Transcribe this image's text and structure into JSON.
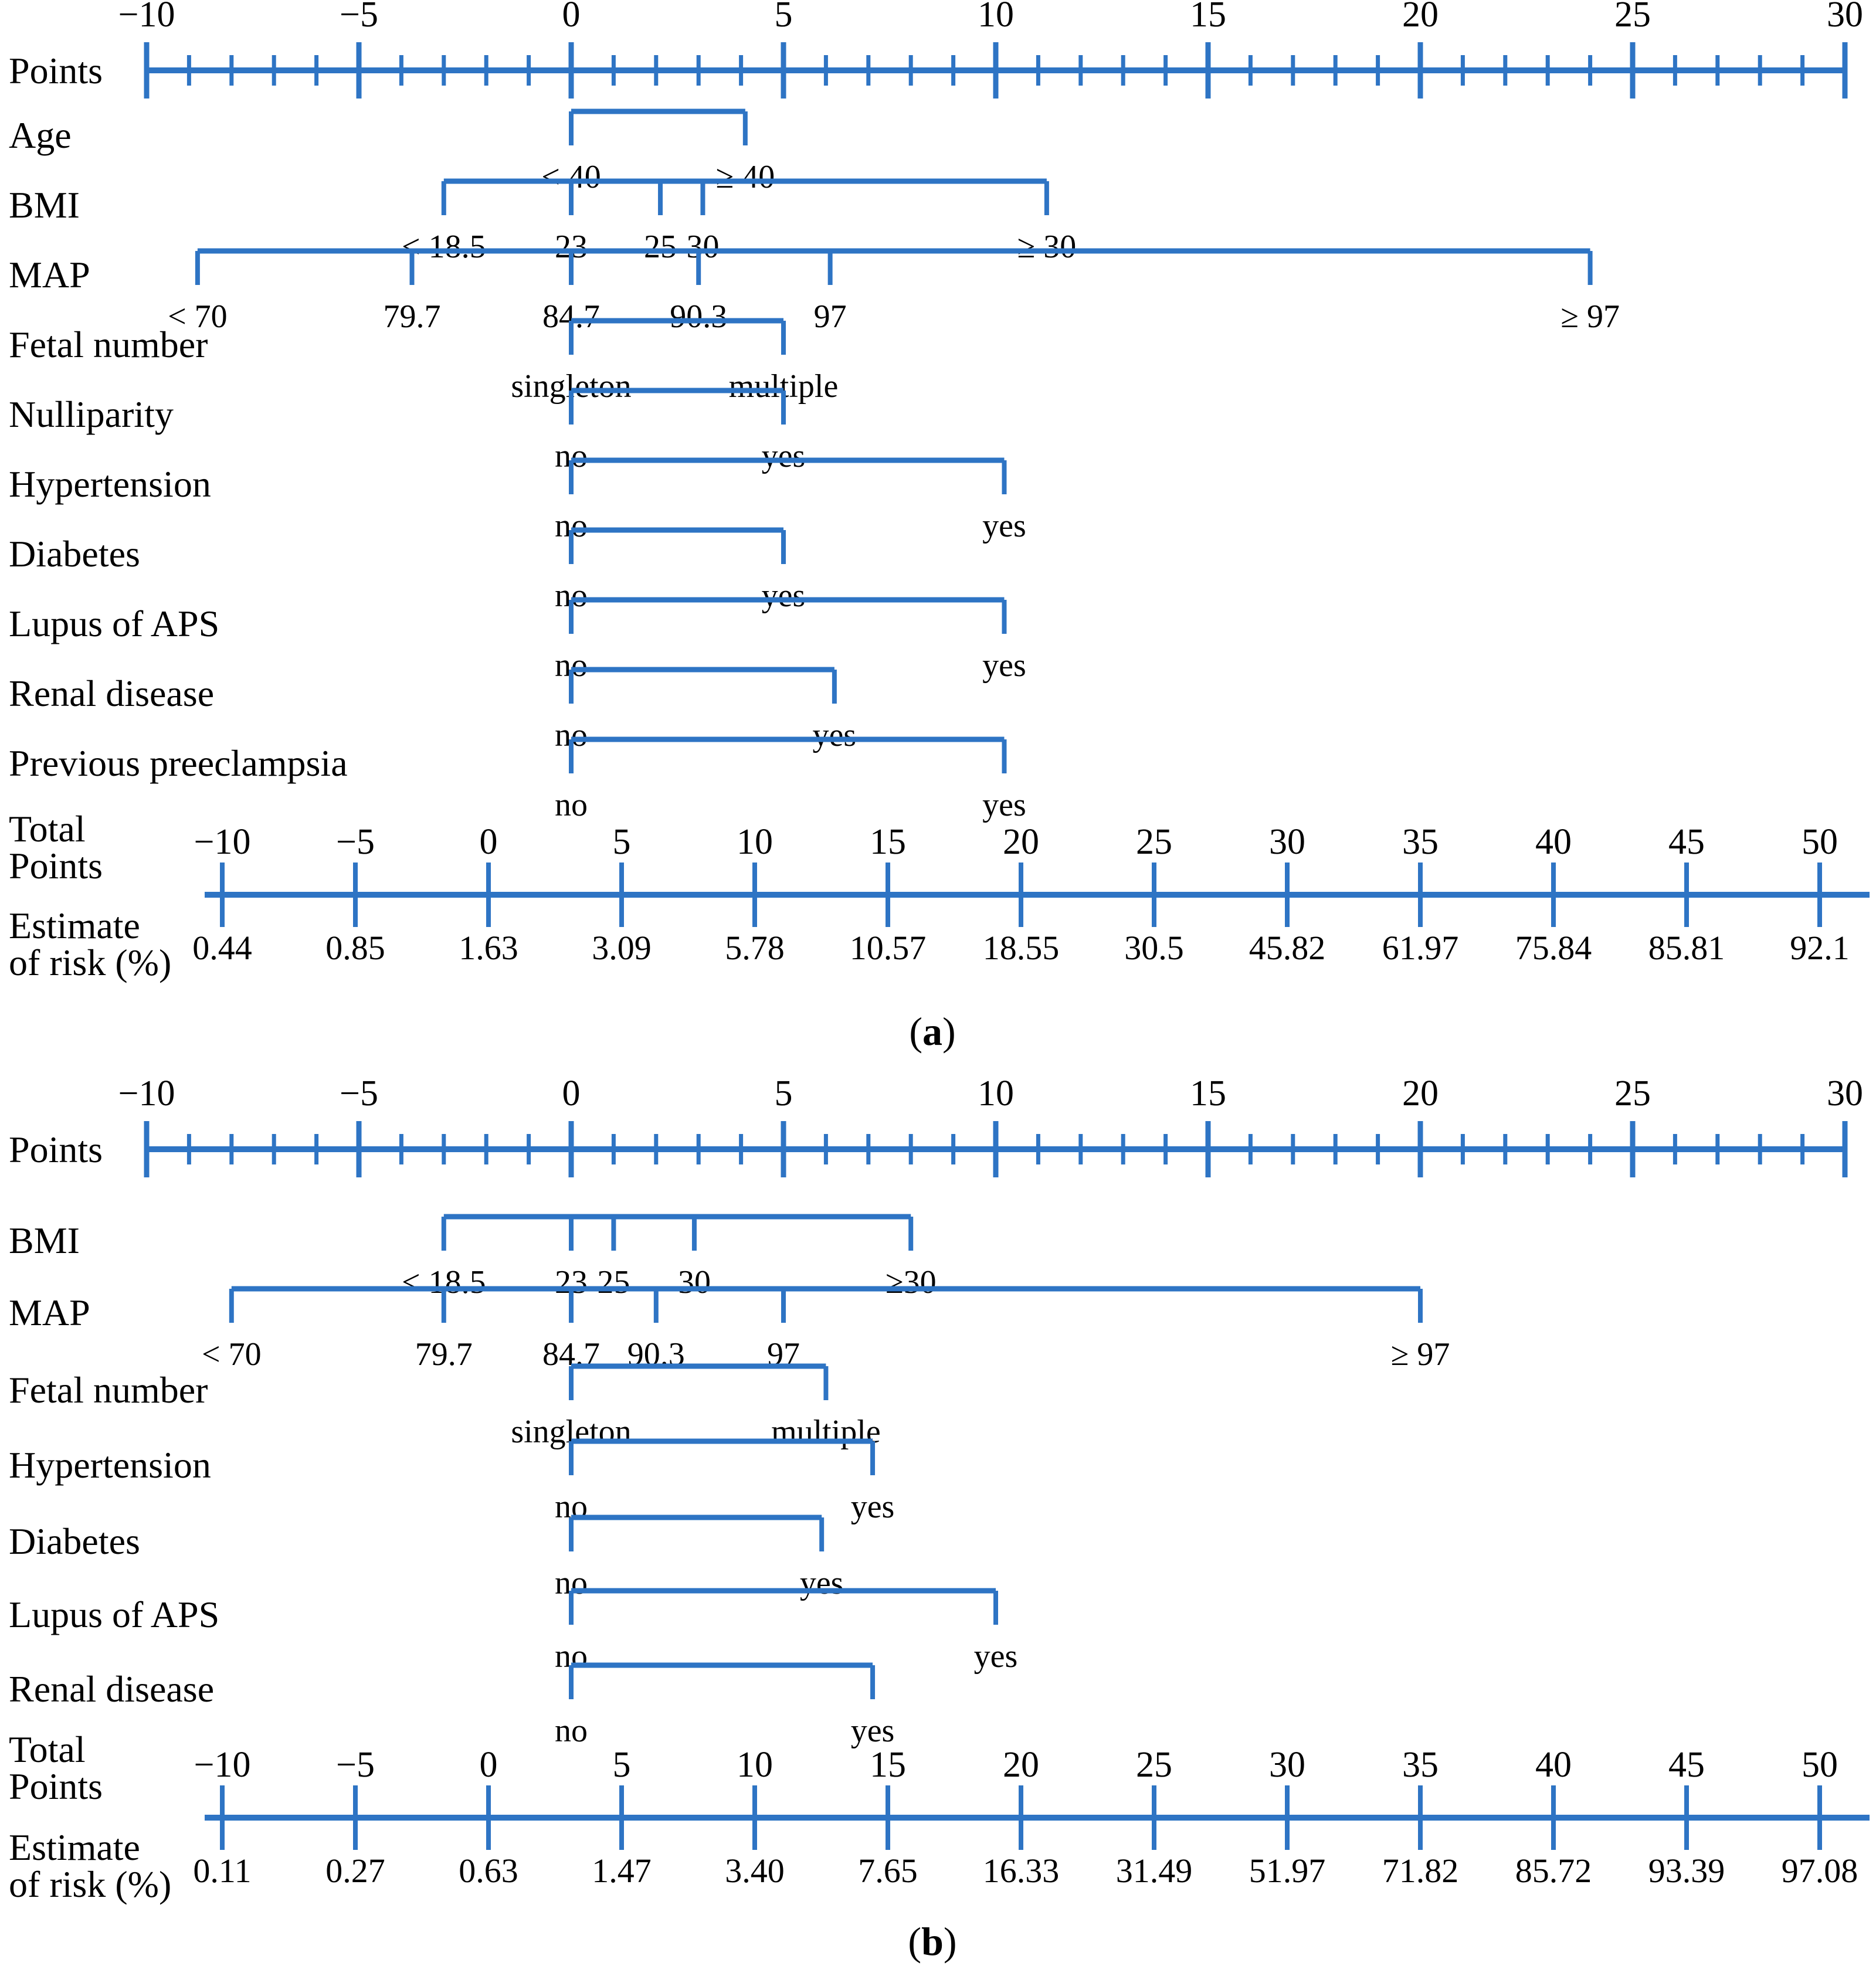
{
  "colors": {
    "axis_blue": "#2E74C4",
    "text_black": "#000000"
  },
  "chart_data": [
    {
      "type": "nomogram",
      "panel": "a",
      "caption": "(a)",
      "points_axis": {
        "label": "Points",
        "min": -10,
        "max": 30,
        "major_step": 5,
        "minor_step": 1,
        "major_labels": [
          "−10",
          "−5",
          "0",
          "5",
          "10",
          "15",
          "20",
          "25",
          "30"
        ]
      },
      "variables": [
        {
          "label": "Age",
          "entries": [
            {
              "text": "< 40",
              "points": 0
            },
            {
              "text": "≥ 40",
              "points": 4.1
            }
          ]
        },
        {
          "label": "BMI",
          "entries": [
            {
              "text": "< 18.5",
              "points": -3
            },
            {
              "text": "23",
              "points": 0
            },
            {
              "text": "25",
              "points": 2.1
            },
            {
              "text": "30",
              "points": 3.1
            },
            {
              "text": "≥ 30",
              "points": 11.2
            }
          ]
        },
        {
          "label": "MAP",
          "entries": [
            {
              "text": "< 70",
              "points": -8.8
            },
            {
              "text": "79.7",
              "points": -3.75
            },
            {
              "text": "84.7",
              "points": 0
            },
            {
              "text": "90.3",
              "points": 3
            },
            {
              "text": "97",
              "points": 6.1
            },
            {
              "text": "≥ 97",
              "points": 24
            }
          ]
        },
        {
          "label": "Fetal number",
          "entries": [
            {
              "text": "singleton",
              "points": 0
            },
            {
              "text": "multiple",
              "points": 5
            }
          ]
        },
        {
          "label": "Nulliparity",
          "entries": [
            {
              "text": "no",
              "points": 0
            },
            {
              "text": "yes",
              "points": 5
            }
          ]
        },
        {
          "label": "Hypertension",
          "entries": [
            {
              "text": "no",
              "points": 0
            },
            {
              "text": "yes",
              "points": 10.2
            }
          ]
        },
        {
          "label": "Diabetes",
          "entries": [
            {
              "text": "no",
              "points": 0
            },
            {
              "text": "yes",
              "points": 5
            }
          ]
        },
        {
          "label": "Lupus of APS",
          "entries": [
            {
              "text": "no",
              "points": 0
            },
            {
              "text": "yes",
              "points": 10.2
            }
          ]
        },
        {
          "label": "Renal disease",
          "entries": [
            {
              "text": "no",
              "points": 0
            },
            {
              "text": "yes",
              "points": 6.2
            }
          ]
        },
        {
          "label": "Previous preeclampsia",
          "entries": [
            {
              "text": "no",
              "points": 0
            },
            {
              "text": "yes",
              "points": 10.2
            }
          ]
        }
      ],
      "total_points_axis": {
        "label_lines": [
          "Total",
          "Points"
        ],
        "min": -10,
        "max": 50,
        "step": 5,
        "tick_labels": [
          "−10",
          "−5",
          "0",
          "5",
          "10",
          "15",
          "20",
          "25",
          "30",
          "35",
          "40",
          "45",
          "50"
        ]
      },
      "risk_axis": {
        "label_lines": [
          "Estimate",
          "of risk (%)"
        ],
        "total_points": [
          -10,
          -5,
          0,
          5,
          10,
          15,
          20,
          25,
          30,
          35,
          40,
          45,
          50
        ],
        "risk_percent": [
          "0.44",
          "0.85",
          "1.63",
          "3.09",
          "5.78",
          "10.57",
          "18.55",
          "30.5",
          "45.82",
          "61.97",
          "75.84",
          "85.81",
          "92.1"
        ]
      }
    },
    {
      "type": "nomogram",
      "panel": "b",
      "caption": "(b)",
      "points_axis": {
        "label": "Points",
        "min": -10,
        "max": 30,
        "major_step": 5,
        "minor_step": 1,
        "major_labels": [
          "−10",
          "−5",
          "0",
          "5",
          "10",
          "15",
          "20",
          "25",
          "30"
        ]
      },
      "variables": [
        {
          "label": "BMI",
          "entries": [
            {
              "text": "< 18.5",
              "points": -3
            },
            {
              "text": "23",
              "points": 0
            },
            {
              "text": "25",
              "points": 1
            },
            {
              "text": "30",
              "points": 2.9
            },
            {
              "text": "≥30",
              "points": 8
            }
          ]
        },
        {
          "label": "MAP",
          "entries": [
            {
              "text": "< 70",
              "points": -8
            },
            {
              "text": "79.7",
              "points": -3
            },
            {
              "text": "84.7",
              "points": 0
            },
            {
              "text": "90.3",
              "points": 2
            },
            {
              "text": "97",
              "points": 5
            },
            {
              "text": "≥ 97",
              "points": 20
            }
          ]
        },
        {
          "label": "Fetal number",
          "entries": [
            {
              "text": "singleton",
              "points": 0
            },
            {
              "text": "multiple",
              "points": 6
            }
          ]
        },
        {
          "label": "Hypertension",
          "entries": [
            {
              "text": "no",
              "points": 0
            },
            {
              "text": "yes",
              "points": 7.1
            }
          ]
        },
        {
          "label": "Diabetes",
          "entries": [
            {
              "text": "no",
              "points": 0
            },
            {
              "text": "yes",
              "points": 5.9
            }
          ]
        },
        {
          "label": "Lupus of APS",
          "entries": [
            {
              "text": "no",
              "points": 0
            },
            {
              "text": "yes",
              "points": 10
            }
          ]
        },
        {
          "label": "Renal disease",
          "entries": [
            {
              "text": "no",
              "points": 0
            },
            {
              "text": "yes",
              "points": 7.1
            }
          ]
        }
      ],
      "total_points_axis": {
        "label_lines": [
          "Total",
          "Points"
        ],
        "min": -10,
        "max": 50,
        "step": 5,
        "tick_labels": [
          "−10",
          "−5",
          "0",
          "5",
          "10",
          "15",
          "20",
          "25",
          "30",
          "35",
          "40",
          "45",
          "50"
        ]
      },
      "risk_axis": {
        "label_lines": [
          "Estimate",
          "of risk (%)"
        ],
        "total_points": [
          -10,
          -5,
          0,
          5,
          10,
          15,
          20,
          25,
          30,
          35,
          40,
          45,
          50
        ],
        "risk_percent": [
          "0.11",
          "0.27",
          "0.63",
          "1.47",
          "3.40",
          "7.65",
          "16.33",
          "31.49",
          "51.97",
          "71.82",
          "85.72",
          "93.39",
          "97.08"
        ]
      }
    }
  ]
}
